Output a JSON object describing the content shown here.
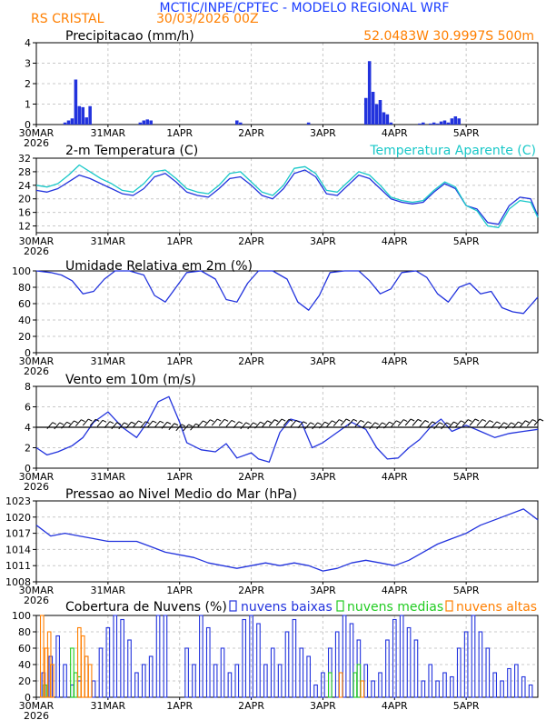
{
  "header": {
    "title": "MCTIC/INPE/CPTEC - MODELO REGIONAL WRF",
    "location": "RS CRISTAL",
    "run": "30/03/2026 00Z",
    "coords": "52.0483W 30.9997S 500m"
  },
  "colors": {
    "title": "#1a3cff",
    "orange": "#ff7f00",
    "cyan": "#19c8c8",
    "blue": "#2233dd",
    "green": "#22cc22",
    "grid": "#c8c8c8",
    "axis": "#000000",
    "barb": "#000000"
  },
  "chart_data": [
    {
      "type": "bar",
      "title": "Precipitacao (mm/h)",
      "x_ticks": [
        {
          "day": 0,
          "label": "30MAR",
          "year": "2026"
        },
        {
          "day": 1,
          "label": "31MAR"
        },
        {
          "day": 2,
          "label": "1APR"
        },
        {
          "day": 3,
          "label": "2APR"
        },
        {
          "day": 4,
          "label": "3APR"
        },
        {
          "day": 5,
          "label": "4APR"
        },
        {
          "day": 6,
          "label": "5APR"
        }
      ],
      "x_range_days": [
        0,
        7
      ],
      "ylim": [
        0,
        4
      ],
      "y_ticks": [
        0,
        1,
        2,
        3,
        4
      ],
      "series": [
        {
          "name": "Precipitacao",
          "color": "#2233dd",
          "x": [
            0.4,
            0.45,
            0.5,
            0.55,
            0.6,
            0.65,
            0.7,
            0.75,
            1.45,
            1.5,
            1.55,
            1.6,
            2.8,
            2.85,
            3.8,
            4.6,
            4.65,
            4.7,
            4.75,
            4.8,
            4.85,
            4.9,
            4.95,
            5.35,
            5.4,
            5.5,
            5.55,
            5.6,
            5.65,
            5.7,
            5.75,
            5.8,
            5.85,
            5.9
          ],
          "values": [
            0.1,
            0.2,
            0.3,
            2.2,
            0.9,
            0.85,
            0.35,
            0.9,
            0.1,
            0.2,
            0.25,
            0.2,
            0.2,
            0.1,
            0.1,
            1.3,
            3.1,
            1.6,
            1.0,
            1.2,
            0.6,
            0.5,
            0.1,
            0.05,
            0.1,
            0.05,
            0.1,
            0.05,
            0.15,
            0.2,
            0.1,
            0.3,
            0.4,
            0.3
          ]
        }
      ]
    },
    {
      "type": "line",
      "title": "2-m Temperatura (C)",
      "legend_right": "Temperatura Aparente (C)",
      "x_range_days": [
        0,
        7
      ],
      "ylim": [
        10,
        32
      ],
      "y_ticks": [
        12,
        16,
        20,
        24,
        28,
        32
      ],
      "series": [
        {
          "name": "2-m Temperatura",
          "color": "#2233dd",
          "x": [
            0,
            0.15,
            0.3,
            0.45,
            0.6,
            0.75,
            0.9,
            1.05,
            1.2,
            1.35,
            1.5,
            1.65,
            1.8,
            1.95,
            2.1,
            2.25,
            2.4,
            2.55,
            2.7,
            2.85,
            3.0,
            3.15,
            3.3,
            3.45,
            3.6,
            3.75,
            3.9,
            4.05,
            4.2,
            4.35,
            4.5,
            4.65,
            4.8,
            4.95,
            5.1,
            5.25,
            5.4,
            5.55,
            5.7,
            5.85,
            6.0,
            6.15,
            6.3,
            6.45,
            6.6,
            6.75,
            6.9,
            7.0
          ],
          "values": [
            22.5,
            22,
            23,
            25,
            27,
            26,
            24.5,
            23,
            21.5,
            21,
            23,
            26.5,
            27.5,
            25,
            22,
            21,
            20.5,
            23,
            26,
            26.5,
            24,
            21,
            20,
            23,
            27.5,
            28.5,
            26.5,
            21.5,
            21,
            24,
            27,
            26,
            23,
            20,
            19,
            18.5,
            19,
            22,
            24.5,
            23,
            18,
            17,
            13,
            12.5,
            18,
            20.5,
            20,
            15
          ]
        },
        {
          "name": "Temperatura Aparente",
          "color": "#19c8c8",
          "x": [
            0,
            0.15,
            0.3,
            0.45,
            0.6,
            0.75,
            0.9,
            1.05,
            1.2,
            1.35,
            1.5,
            1.65,
            1.8,
            1.95,
            2.1,
            2.25,
            2.4,
            2.55,
            2.7,
            2.85,
            3.0,
            3.15,
            3.3,
            3.45,
            3.6,
            3.75,
            3.9,
            4.05,
            4.2,
            4.35,
            4.5,
            4.65,
            4.8,
            4.95,
            5.1,
            5.25,
            5.4,
            5.55,
            5.7,
            5.85,
            6.0,
            6.15,
            6.3,
            6.45,
            6.6,
            6.75,
            6.9,
            7.0
          ],
          "values": [
            24,
            23.5,
            24.5,
            27,
            30,
            28,
            26,
            24.5,
            22.5,
            22,
            24.5,
            28,
            28.5,
            26,
            23,
            22,
            21.5,
            24,
            27.5,
            28,
            25,
            22,
            21,
            24,
            29,
            29.5,
            27.5,
            22.5,
            22,
            25,
            28,
            27,
            24,
            20.5,
            19.5,
            19,
            19.5,
            22.5,
            25,
            23.5,
            18,
            16.5,
            12,
            11.5,
            17,
            19.5,
            19,
            14.5
          ]
        }
      ]
    },
    {
      "type": "line",
      "title": "Umidade Relativa em 2m (%)",
      "x_range_days": [
        0,
        7
      ],
      "ylim": [
        0,
        100
      ],
      "y_ticks": [
        0,
        20,
        40,
        60,
        80,
        100
      ],
      "series": [
        {
          "name": "Umidade Relativa",
          "color": "#2233dd",
          "x": [
            0,
            0.2,
            0.35,
            0.5,
            0.65,
            0.8,
            0.95,
            1.1,
            1.3,
            1.5,
            1.65,
            1.8,
            1.95,
            2.1,
            2.3,
            2.5,
            2.65,
            2.8,
            2.95,
            3.1,
            3.3,
            3.5,
            3.65,
            3.8,
            3.95,
            4.1,
            4.3,
            4.5,
            4.65,
            4.8,
            4.95,
            5.1,
            5.3,
            5.45,
            5.6,
            5.75,
            5.9,
            6.05,
            6.2,
            6.35,
            6.5,
            6.65,
            6.8,
            7.0
          ],
          "values": [
            100,
            98,
            95,
            88,
            72,
            75,
            90,
            100,
            100,
            95,
            70,
            62,
            80,
            98,
            100,
            90,
            65,
            62,
            85,
            100,
            100,
            90,
            62,
            52,
            70,
            98,
            100,
            100,
            88,
            72,
            78,
            98,
            100,
            92,
            72,
            62,
            80,
            85,
            72,
            75,
            55,
            50,
            48,
            68
          ]
        }
      ]
    },
    {
      "type": "line",
      "title": "Vento em 10m (m/s)",
      "x_range_days": [
        0,
        7
      ],
      "ylim": [
        0,
        8
      ],
      "y_ticks": [
        0,
        2,
        4,
        6,
        8
      ],
      "barbs_note": "wind barbs drawn along y = 4",
      "series": [
        {
          "name": "Vento em 10m",
          "color": "#2233dd",
          "x": [
            0,
            0.15,
            0.3,
            0.5,
            0.65,
            0.8,
            1.0,
            1.2,
            1.4,
            1.55,
            1.7,
            1.85,
            2.0,
            2.1,
            2.3,
            2.5,
            2.65,
            2.8,
            3.0,
            3.1,
            3.25,
            3.4,
            3.55,
            3.7,
            3.85,
            4.0,
            4.2,
            4.4,
            4.6,
            4.75,
            4.9,
            5.05,
            5.2,
            5.35,
            5.5,
            5.65,
            5.8,
            6.0,
            6.2,
            6.4,
            6.6,
            6.8,
            7.0
          ],
          "values": [
            2.0,
            1.3,
            1.6,
            2.2,
            3.0,
            4.5,
            5.5,
            4.0,
            3.0,
            4.5,
            6.5,
            7.0,
            4.5,
            2.5,
            1.8,
            1.6,
            2.4,
            1.0,
            1.5,
            0.9,
            0.6,
            3.5,
            4.8,
            4.5,
            2.0,
            2.5,
            3.5,
            4.5,
            3.8,
            2.0,
            0.9,
            1.0,
            2.0,
            2.8,
            4.0,
            4.8,
            3.6,
            4.2,
            3.6,
            3.0,
            3.4,
            3.6,
            3.8
          ]
        }
      ]
    },
    {
      "type": "line",
      "title": "Pressao ao Nivel Medio do Mar (hPa)",
      "x_range_days": [
        0,
        7
      ],
      "ylim": [
        1008,
        1023
      ],
      "y_ticks": [
        1008,
        1011,
        1014,
        1017,
        1020,
        1023
      ],
      "series": [
        {
          "name": "Pressao",
          "color": "#2233dd",
          "x": [
            0,
            0.2,
            0.4,
            0.6,
            0.8,
            1.0,
            1.2,
            1.4,
            1.6,
            1.8,
            2.0,
            2.2,
            2.4,
            2.6,
            2.8,
            3.0,
            3.2,
            3.4,
            3.6,
            3.8,
            4.0,
            4.2,
            4.4,
            4.6,
            4.8,
            5.0,
            5.2,
            5.4,
            5.6,
            5.8,
            6.0,
            6.2,
            6.4,
            6.6,
            6.8,
            7.0
          ],
          "values": [
            1018.5,
            1016.5,
            1017,
            1016.5,
            1016,
            1015.5,
            1015.5,
            1015.5,
            1014.5,
            1013.5,
            1013,
            1012.5,
            1011.5,
            1011,
            1010.5,
            1011,
            1011.5,
            1011,
            1011.5,
            1011,
            1010,
            1010.5,
            1011.5,
            1012,
            1011.5,
            1011,
            1012,
            1013.5,
            1015,
            1016,
            1017,
            1018.5,
            1019.5,
            1020.5,
            1021.5,
            1019.5
          ]
        }
      ]
    },
    {
      "type": "bar",
      "title": "Cobertura de Nuvens (%)",
      "x_range_days": [
        0,
        7
      ],
      "ylim": [
        0,
        100
      ],
      "y_ticks": [
        0,
        20,
        40,
        60,
        80,
        100
      ],
      "legend": [
        "nuvens baixas",
        "nuvens medias",
        "nuvens altas"
      ],
      "series": [
        {
          "name": "nuvens baixas",
          "color": "#2233dd",
          "style": "hollow",
          "x": [
            0.1,
            0.2,
            0.3,
            0.4,
            0.5,
            0.6,
            0.7,
            0.8,
            0.9,
            1.0,
            1.1,
            1.2,
            1.3,
            1.4,
            1.5,
            1.6,
            1.7,
            1.8,
            2.1,
            2.2,
            2.3,
            2.4,
            2.5,
            2.6,
            2.7,
            2.8,
            2.9,
            3.0,
            3.1,
            3.2,
            3.3,
            3.4,
            3.5,
            3.6,
            3.7,
            3.8,
            3.9,
            4.0,
            4.1,
            4.2,
            4.3,
            4.4,
            4.5,
            4.6,
            4.7,
            4.8,
            4.9,
            5.0,
            5.1,
            5.2,
            5.3,
            5.4,
            5.5,
            5.6,
            5.7,
            5.8,
            5.9,
            6.0,
            6.1,
            6.2,
            6.3,
            6.4,
            6.5,
            6.6,
            6.7,
            6.8,
            6.9
          ],
          "values": [
            30,
            50,
            75,
            40,
            15,
            20,
            50,
            20,
            60,
            85,
            100,
            95,
            70,
            30,
            40,
            50,
            100,
            100,
            60,
            40,
            100,
            85,
            40,
            60,
            30,
            40,
            95,
            100,
            90,
            40,
            60,
            40,
            80,
            95,
            60,
            50,
            15,
            30,
            60,
            80,
            100,
            90,
            70,
            40,
            20,
            30,
            70,
            95,
            100,
            85,
            70,
            20,
            40,
            20,
            30,
            25,
            60,
            80,
            100,
            80,
            60,
            30,
            20,
            35,
            40,
            25,
            15
          ]
        },
        {
          "name": "nuvens medias",
          "color": "#22cc22",
          "style": "hollow",
          "x": [
            0.12,
            0.5,
            0.55,
            0.6,
            4.1,
            4.45,
            4.5
          ],
          "values": [
            15,
            60,
            30,
            25,
            30,
            30,
            40
          ]
        },
        {
          "name": "nuvens altas",
          "color": "#ff7f00",
          "style": "hollow",
          "x": [
            0.08,
            0.14,
            0.18,
            0.22,
            0.6,
            0.65,
            0.7,
            0.75,
            4.25,
            4.55
          ],
          "values": [
            100,
            60,
            80,
            40,
            85,
            75,
            50,
            40,
            30,
            20
          ]
        }
      ]
    }
  ]
}
